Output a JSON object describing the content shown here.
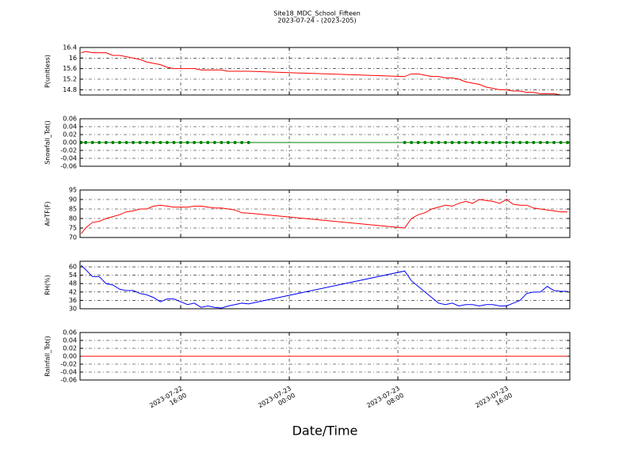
{
  "title": "Site18_MDC_School_Fifteen",
  "subtitle": "2023-07-24 - (2023-205)",
  "xlabel": "Date/Time",
  "chart_data": [
    {
      "type": "line",
      "ylabel": "P(unitless)",
      "ylim": [
        14.6,
        16.4
      ],
      "yticks": [
        14.8,
        15.2,
        15.6,
        16.0,
        16.4
      ],
      "xlim": [
        "2023-07-22 08:35",
        "2023-07-23 20:40"
      ],
      "xticks": [
        {
          "value": "2023-07-22 16:00",
          "label": "2023-07-22\n16:00"
        },
        {
          "value": "2023-07-23 00:00",
          "label": "2023-07-23\n00:00"
        },
        {
          "value": "2023-07-23 08:00",
          "label": "2023-07-23\n08:00"
        },
        {
          "value": "2023-07-23 16:00",
          "label": "2023-07-23\n16:00"
        }
      ],
      "grid": true,
      "color": "#ff0000",
      "markers": false,
      "x": [
        "2023-07-22 08:40",
        "2023-07-22 09:00",
        "2023-07-22 09:30",
        "2023-07-22 10:00",
        "2023-07-22 10:30",
        "2023-07-22 11:00",
        "2023-07-22 11:30",
        "2023-07-22 12:00",
        "2023-07-22 12:30",
        "2023-07-22 13:00",
        "2023-07-22 13:30",
        "2023-07-22 14:00",
        "2023-07-22 14:30",
        "2023-07-22 15:00",
        "2023-07-22 15:30",
        "2023-07-22 16:00",
        "2023-07-22 16:30",
        "2023-07-22 17:00",
        "2023-07-22 17:30",
        "2023-07-22 18:00",
        "2023-07-22 18:30",
        "2023-07-22 19:00",
        "2023-07-22 19:30",
        "2023-07-22 20:00",
        "2023-07-22 20:30",
        "2023-07-22 21:00",
        "2023-07-23 08:30",
        "2023-07-23 09:00",
        "2023-07-23 09:30",
        "2023-07-23 10:00",
        "2023-07-23 10:30",
        "2023-07-23 11:00",
        "2023-07-23 11:30",
        "2023-07-23 12:00",
        "2023-07-23 12:30",
        "2023-07-23 13:00",
        "2023-07-23 13:30",
        "2023-07-23 14:00",
        "2023-07-23 14:30",
        "2023-07-23 15:00",
        "2023-07-23 15:30",
        "2023-07-23 16:00",
        "2023-07-23 16:30",
        "2023-07-23 17:00",
        "2023-07-23 17:30",
        "2023-07-23 18:00",
        "2023-07-23 18:30",
        "2023-07-23 19:00",
        "2023-07-23 19:30",
        "2023-07-23 20:00",
        "2023-07-23 20:30"
      ],
      "values": [
        16.2,
        16.25,
        16.2,
        16.2,
        16.2,
        16.1,
        16.1,
        16.05,
        16.0,
        15.95,
        15.85,
        15.8,
        15.75,
        15.65,
        15.6,
        15.6,
        15.6,
        15.6,
        15.55,
        15.55,
        15.55,
        15.55,
        15.5,
        15.5,
        15.5,
        15.5,
        15.3,
        15.4,
        15.4,
        15.35,
        15.3,
        15.3,
        15.25,
        15.25,
        15.2,
        15.1,
        15.05,
        15.0,
        14.9,
        14.85,
        14.8,
        14.8,
        14.75,
        14.75,
        14.7,
        14.7,
        14.65,
        14.65,
        14.65,
        14.6,
        14.6
      ]
    },
    {
      "type": "line",
      "ylabel": "Snowfall_Tot()",
      "ylim": [
        -0.06,
        0.06
      ],
      "yticks": [
        -0.06,
        -0.04,
        -0.02,
        {
          "value": 0,
          "label": "0.00"
        },
        0.02,
        0.04,
        0.06
      ],
      "xlim": [
        "2023-07-22 08:35",
        "2023-07-23 20:40"
      ],
      "xticks": [
        {
          "value": "2023-07-22 16:00",
          "label": "2023-07-22\n16:00"
        },
        {
          "value": "2023-07-23 00:00",
          "label": "2023-07-23\n00:00"
        },
        {
          "value": "2023-07-23 08:00",
          "label": "2023-07-23\n08:00"
        },
        {
          "value": "2023-07-23 16:00",
          "label": "2023-07-23\n16:00"
        }
      ],
      "grid": true,
      "color": "#008000",
      "markers": true,
      "x": [
        "2023-07-22 08:40",
        "2023-07-22 09:00",
        "2023-07-22 09:30",
        "2023-07-22 10:00",
        "2023-07-22 10:30",
        "2023-07-22 11:00",
        "2023-07-22 11:30",
        "2023-07-22 12:00",
        "2023-07-22 12:30",
        "2023-07-22 13:00",
        "2023-07-22 13:30",
        "2023-07-22 14:00",
        "2023-07-22 14:30",
        "2023-07-22 15:00",
        "2023-07-22 15:30",
        "2023-07-22 16:00",
        "2023-07-22 16:30",
        "2023-07-22 17:00",
        "2023-07-22 17:30",
        "2023-07-22 18:00",
        "2023-07-22 18:30",
        "2023-07-22 19:00",
        "2023-07-22 19:30",
        "2023-07-22 20:00",
        "2023-07-22 20:30",
        "2023-07-22 21:00",
        "2023-07-23 08:30",
        "2023-07-23 09:00",
        "2023-07-23 09:30",
        "2023-07-23 10:00",
        "2023-07-23 10:30",
        "2023-07-23 11:00",
        "2023-07-23 11:30",
        "2023-07-23 12:00",
        "2023-07-23 12:30",
        "2023-07-23 13:00",
        "2023-07-23 13:30",
        "2023-07-23 14:00",
        "2023-07-23 14:30",
        "2023-07-23 15:00",
        "2023-07-23 15:30",
        "2023-07-23 16:00",
        "2023-07-23 16:30",
        "2023-07-23 17:00",
        "2023-07-23 17:30",
        "2023-07-23 18:00",
        "2023-07-23 18:30",
        "2023-07-23 19:00",
        "2023-07-23 19:30",
        "2023-07-23 20:00",
        "2023-07-23 20:30"
      ],
      "values": [
        0,
        0,
        0,
        0,
        0,
        0,
        0,
        0,
        0,
        0,
        0,
        0,
        0,
        0,
        0,
        0,
        0,
        0,
        0,
        0,
        0,
        0,
        0,
        0,
        0,
        0,
        0,
        0,
        0,
        0,
        0,
        0,
        0,
        0,
        0,
        0,
        0,
        0,
        0,
        0,
        0,
        0,
        0,
        0,
        0,
        0,
        0,
        0,
        0,
        0,
        0
      ]
    },
    {
      "type": "line",
      "ylabel": "AirTF(F)",
      "ylim": [
        70,
        95
      ],
      "yticks": [
        70,
        75,
        80,
        85,
        90,
        95
      ],
      "xlim": [
        "2023-07-22 08:35",
        "2023-07-23 20:40"
      ],
      "xticks": [
        {
          "value": "2023-07-22 16:00",
          "label": "2023-07-22\n16:00"
        },
        {
          "value": "2023-07-23 00:00",
          "label": "2023-07-23\n00:00"
        },
        {
          "value": "2023-07-23 08:00",
          "label": "2023-07-23\n08:00"
        },
        {
          "value": "2023-07-23 16:00",
          "label": "2023-07-23\n16:00"
        }
      ],
      "grid": true,
      "color": "#ff0000",
      "markers": false,
      "x": [
        "2023-07-22 08:40",
        "2023-07-22 09:00",
        "2023-07-22 09:30",
        "2023-07-22 10:00",
        "2023-07-22 10:30",
        "2023-07-22 11:00",
        "2023-07-22 11:30",
        "2023-07-22 12:00",
        "2023-07-22 12:30",
        "2023-07-22 13:00",
        "2023-07-22 13:30",
        "2023-07-22 14:00",
        "2023-07-22 14:30",
        "2023-07-22 15:00",
        "2023-07-22 15:30",
        "2023-07-22 16:00",
        "2023-07-22 16:30",
        "2023-07-22 17:00",
        "2023-07-22 17:30",
        "2023-07-22 18:00",
        "2023-07-22 18:30",
        "2023-07-22 19:00",
        "2023-07-22 19:30",
        "2023-07-22 20:00",
        "2023-07-22 20:30",
        "2023-07-22 21:00",
        "2023-07-23 08:30",
        "2023-07-23 09:00",
        "2023-07-23 09:30",
        "2023-07-23 10:00",
        "2023-07-23 10:30",
        "2023-07-23 11:00",
        "2023-07-23 11:30",
        "2023-07-23 12:00",
        "2023-07-23 12:30",
        "2023-07-23 13:00",
        "2023-07-23 13:30",
        "2023-07-23 14:00",
        "2023-07-23 14:30",
        "2023-07-23 15:00",
        "2023-07-23 15:30",
        "2023-07-23 16:00",
        "2023-07-23 16:30",
        "2023-07-23 17:00",
        "2023-07-23 17:30",
        "2023-07-23 18:00",
        "2023-07-23 18:30",
        "2023-07-23 19:00",
        "2023-07-23 19:30",
        "2023-07-23 20:00",
        "2023-07-23 20:30"
      ],
      "values": [
        72,
        75,
        78,
        78.5,
        80,
        81,
        82,
        83.5,
        84,
        85,
        85,
        86.5,
        87,
        86.5,
        86,
        86,
        86,
        86.5,
        86.5,
        86,
        85.5,
        85.5,
        85,
        84.5,
        83,
        82.8,
        75,
        80,
        82,
        83,
        85,
        86,
        87,
        86.5,
        88,
        89,
        88,
        90,
        89.5,
        89,
        88,
        90,
        87.5,
        87,
        87,
        85.5,
        85,
        84.5,
        84,
        83.5,
        83.5
      ]
    },
    {
      "type": "line",
      "ylabel": "RH(%)",
      "ylim": [
        30,
        64
      ],
      "yticks": [
        30,
        36,
        42,
        48,
        54,
        60
      ],
      "xlim": [
        "2023-07-22 08:35",
        "2023-07-23 20:40"
      ],
      "xticks": [
        {
          "value": "2023-07-22 16:00",
          "label": "2023-07-22\n16:00"
        },
        {
          "value": "2023-07-23 00:00",
          "label": "2023-07-23\n00:00"
        },
        {
          "value": "2023-07-23 08:00",
          "label": "2023-07-23\n08:00"
        },
        {
          "value": "2023-07-23 16:00",
          "label": "2023-07-23\n16:00"
        }
      ],
      "grid": true,
      "color": "#0000ff",
      "markers": false,
      "x": [
        "2023-07-22 08:40",
        "2023-07-22 09:00",
        "2023-07-22 09:30",
        "2023-07-22 10:00",
        "2023-07-22 10:30",
        "2023-07-22 11:00",
        "2023-07-22 11:30",
        "2023-07-22 12:00",
        "2023-07-22 12:30",
        "2023-07-22 13:00",
        "2023-07-22 13:30",
        "2023-07-22 14:00",
        "2023-07-22 14:30",
        "2023-07-22 15:00",
        "2023-07-22 15:30",
        "2023-07-22 16:00",
        "2023-07-22 16:30",
        "2023-07-22 17:00",
        "2023-07-22 17:30",
        "2023-07-22 18:00",
        "2023-07-22 18:30",
        "2023-07-22 19:00",
        "2023-07-22 19:30",
        "2023-07-22 20:00",
        "2023-07-22 20:30",
        "2023-07-22 21:00",
        "2023-07-23 08:30",
        "2023-07-23 09:00",
        "2023-07-23 09:30",
        "2023-07-23 10:00",
        "2023-07-23 10:30",
        "2023-07-23 11:00",
        "2023-07-23 11:30",
        "2023-07-23 12:00",
        "2023-07-23 12:30",
        "2023-07-23 13:00",
        "2023-07-23 13:30",
        "2023-07-23 14:00",
        "2023-07-23 14:30",
        "2023-07-23 15:00",
        "2023-07-23 15:30",
        "2023-07-23 16:00",
        "2023-07-23 16:30",
        "2023-07-23 17:00",
        "2023-07-23 17:30",
        "2023-07-23 18:00",
        "2023-07-23 18:30",
        "2023-07-23 19:00",
        "2023-07-23 19:30",
        "2023-07-23 20:00",
        "2023-07-23 20:30"
      ],
      "values": [
        61,
        58,
        53,
        53,
        48,
        47,
        44,
        43,
        43,
        41,
        40,
        38,
        35,
        37,
        37,
        35,
        33,
        34,
        31,
        32,
        31,
        30.5,
        32,
        33,
        34,
        33.5,
        57,
        50,
        46,
        42,
        38,
        34,
        33,
        34,
        32,
        33,
        33,
        32,
        33,
        33,
        32,
        32,
        34,
        36,
        41,
        42,
        42,
        46,
        43,
        42.5,
        42.5
      ]
    },
    {
      "type": "line",
      "ylabel": "Rainfall_Tot()",
      "ylim": [
        -0.06,
        0.06
      ],
      "yticks": [
        -0.06,
        -0.04,
        -0.02,
        {
          "value": 0,
          "label": "0.00"
        },
        0.02,
        0.04,
        0.06
      ],
      "xlim": [
        "2023-07-22 08:35",
        "2023-07-23 20:40"
      ],
      "xticks": [
        {
          "value": "2023-07-22 16:00",
          "label": "2023-07-22\n16:00"
        },
        {
          "value": "2023-07-23 00:00",
          "label": "2023-07-23\n00:00"
        },
        {
          "value": "2023-07-23 08:00",
          "label": "2023-07-23\n08:00"
        },
        {
          "value": "2023-07-23 16:00",
          "label": "2023-07-23\n16:00"
        }
      ],
      "grid": true,
      "color": "#ff0000",
      "markers": false,
      "x": [
        "2023-07-22 08:40",
        "2023-07-22 09:00",
        "2023-07-22 09:30",
        "2023-07-22 10:00",
        "2023-07-22 10:30",
        "2023-07-22 11:00",
        "2023-07-22 11:30",
        "2023-07-22 12:00",
        "2023-07-22 12:30",
        "2023-07-22 13:00",
        "2023-07-22 13:30",
        "2023-07-22 14:00",
        "2023-07-22 14:30",
        "2023-07-22 15:00",
        "2023-07-22 15:30",
        "2023-07-22 16:00",
        "2023-07-22 16:30",
        "2023-07-22 17:00",
        "2023-07-22 17:30",
        "2023-07-22 18:00",
        "2023-07-22 18:30",
        "2023-07-22 19:00",
        "2023-07-22 19:30",
        "2023-07-22 20:00",
        "2023-07-22 20:30",
        "2023-07-22 21:00",
        "2023-07-23 08:30",
        "2023-07-23 09:00",
        "2023-07-23 09:30",
        "2023-07-23 10:00",
        "2023-07-23 10:30",
        "2023-07-23 11:00",
        "2023-07-23 11:30",
        "2023-07-23 12:00",
        "2023-07-23 12:30",
        "2023-07-23 13:00",
        "2023-07-23 13:30",
        "2023-07-23 14:00",
        "2023-07-23 14:30",
        "2023-07-23 15:00",
        "2023-07-23 15:30",
        "2023-07-23 16:00",
        "2023-07-23 16:30",
        "2023-07-23 17:00",
        "2023-07-23 17:30",
        "2023-07-23 18:00",
        "2023-07-23 18:30",
        "2023-07-23 19:00",
        "2023-07-23 19:30",
        "2023-07-23 20:00",
        "2023-07-23 20:30"
      ],
      "values": [
        0,
        0,
        0,
        0,
        0,
        0,
        0,
        0,
        0,
        0,
        0,
        0,
        0,
        0,
        0,
        0,
        0,
        0,
        0,
        0,
        0,
        0,
        0,
        0,
        0,
        0,
        0,
        0,
        0,
        0,
        0,
        0,
        0,
        0,
        0,
        0,
        0,
        0,
        0,
        0,
        0,
        0,
        0,
        0,
        0,
        0,
        0,
        0,
        0,
        0,
        0
      ]
    }
  ]
}
